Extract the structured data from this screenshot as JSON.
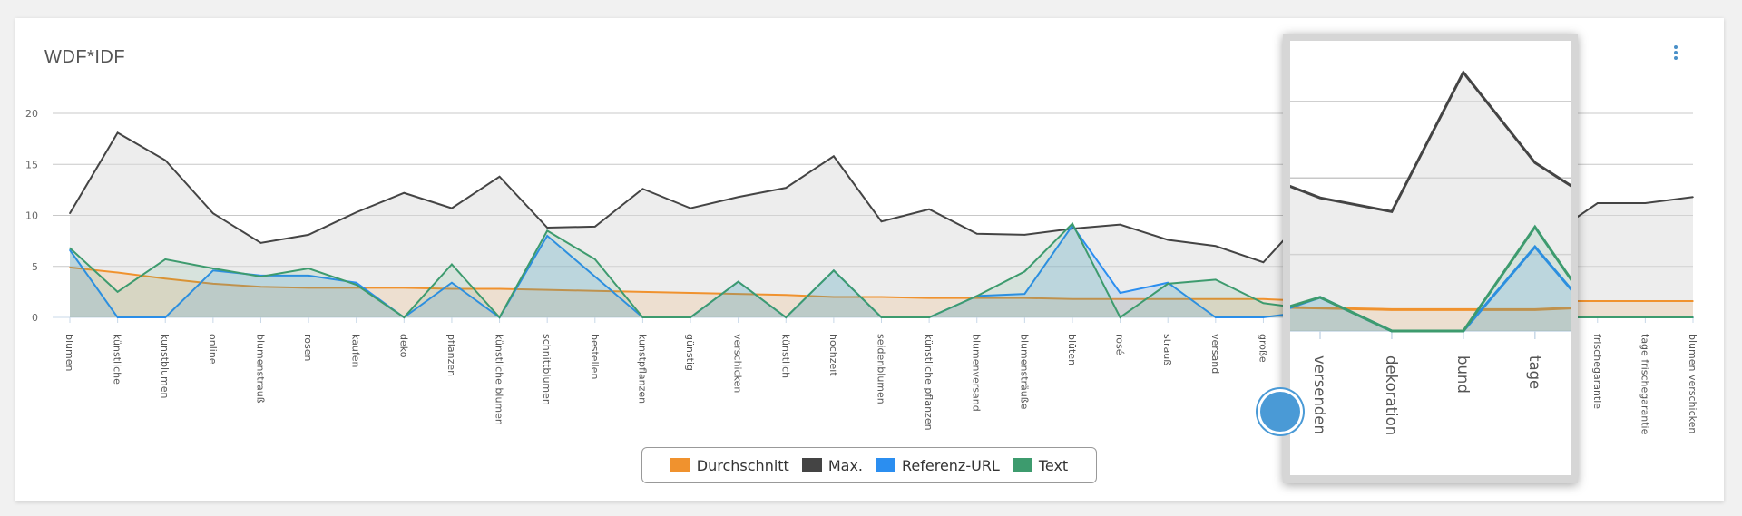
{
  "header": {
    "title": "WDF*IDF",
    "menu_icon": "kebab-vertical-icon"
  },
  "colors": {
    "Durchschnitt": "#f0922e",
    "Max.": "#444444",
    "Referenz-URL": "#2b8ef0",
    "Text": "#3d9b6e"
  },
  "chart_data": {
    "type": "area",
    "title": "WDF*IDF",
    "xlabel": "",
    "ylabel": "",
    "ylim": [
      0,
      20
    ],
    "yticks": [
      0,
      5,
      10,
      15,
      20
    ],
    "grid": true,
    "legend": "bottom",
    "categories": [
      "blumen",
      "künstliche",
      "kunstblumen",
      "online",
      "blumenstrauß",
      "rosen",
      "kaufen",
      "deko",
      "pflanzen",
      "künstliche blumen",
      "schnittblumen",
      "bestellen",
      "kunstpflanzen",
      "günstig",
      "verschicken",
      "künstlich",
      "hochzeit",
      "seidenblumen",
      "künstliche pflanzen",
      "blumenversand",
      "blumensträuße",
      "blüten",
      "rosé",
      "strauß",
      "versand",
      "große",
      "",
      "versenden",
      "dekoration",
      "bund",
      "tage",
      "",
      "frischegarantie",
      "tage frischegarantie",
      "blumen verschicken"
    ],
    "series": [
      {
        "name": "Max.",
        "values": [
          10.2,
          18.1,
          15.4,
          10.2,
          7.3,
          8.1,
          10.3,
          12.2,
          10.7,
          13.8,
          8.8,
          8.9,
          12.6,
          10.7,
          11.8,
          12.7,
          15.8,
          9.4,
          10.6,
          8.2,
          8.1,
          8.7,
          9.1,
          7.6,
          7.0,
          5.4,
          10.5,
          8.7,
          7.8,
          16.9,
          11.0,
          8.0,
          11.2,
          11.2,
          11.8
        ]
      },
      {
        "name": "Durchschnitt",
        "values": [
          4.9,
          4.4,
          3.8,
          3.3,
          3.0,
          2.9,
          2.9,
          2.9,
          2.8,
          2.8,
          2.7,
          2.6,
          2.5,
          2.4,
          2.3,
          2.2,
          2.0,
          2.0,
          1.9,
          1.9,
          1.9,
          1.8,
          1.8,
          1.8,
          1.8,
          1.8,
          1.6,
          1.5,
          1.4,
          1.4,
          1.4,
          1.6,
          1.6,
          1.6,
          1.6
        ]
      },
      {
        "name": "Referenz-URL",
        "values": [
          6.6,
          0,
          0,
          4.6,
          4.1,
          4.1,
          3.4,
          0,
          3.4,
          0,
          8.0,
          4.0,
          0,
          0,
          3.5,
          0,
          4.6,
          0,
          0,
          2.1,
          2.3,
          9.0,
          2.4,
          3.4,
          0,
          0,
          0.6,
          2.2,
          0,
          0,
          5.5,
          0,
          0,
          0,
          0
        ]
      },
      {
        "name": "Text",
        "values": [
          6.8,
          2.5,
          5.7,
          4.8,
          4.0,
          4.8,
          3.2,
          0,
          5.2,
          0,
          8.5,
          5.7,
          0,
          0,
          3.5,
          0,
          4.6,
          0,
          0,
          2.1,
          4.5,
          9.2,
          0,
          3.3,
          3.7,
          1.4,
          0.8,
          2.2,
          0,
          0,
          6.8,
          0,
          0,
          0,
          0
        ]
      }
    ]
  },
  "legend": {
    "items": [
      "Durchschnitt",
      "Max.",
      "Referenz-URL",
      "Text"
    ]
  }
}
